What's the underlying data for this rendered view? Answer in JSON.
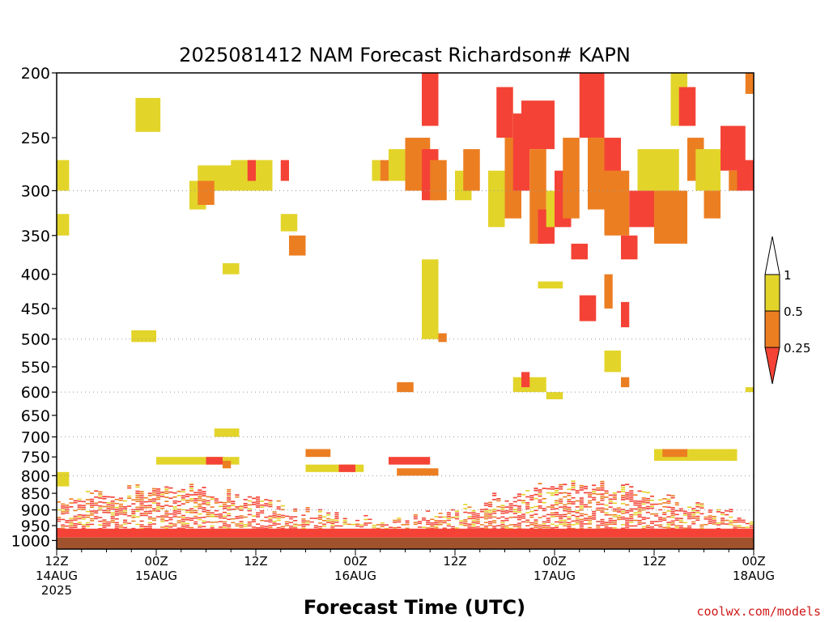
{
  "chart_data": {
    "type": "heatmap",
    "title": "2025081412 NAM Forecast Richardson# KAPN",
    "xlabel": "Forecast Time (UTC)",
    "ylabel": "",
    "x_range_hours": [
      0,
      84
    ],
    "x_ticks": [
      {
        "hour": 0,
        "line1": "12Z",
        "line2": "14AUG",
        "line3": "2025"
      },
      {
        "hour": 12,
        "line1": "00Z",
        "line2": "15AUG",
        "line3": ""
      },
      {
        "hour": 24,
        "line1": "12Z",
        "line2": "",
        "line3": ""
      },
      {
        "hour": 36,
        "line1": "00Z",
        "line2": "16AUG",
        "line3": ""
      },
      {
        "hour": 48,
        "line1": "12Z",
        "line2": "",
        "line3": ""
      },
      {
        "hour": 60,
        "line1": "00Z",
        "line2": "17AUG",
        "line3": ""
      },
      {
        "hour": 72,
        "line1": "12Z",
        "line2": "",
        "line3": ""
      },
      {
        "hour": 84,
        "line1": "00Z",
        "line2": "18AUG",
        "line3": ""
      }
    ],
    "y_ticks": [
      200,
      250,
      300,
      350,
      400,
      450,
      500,
      550,
      600,
      650,
      700,
      750,
      800,
      850,
      900,
      950,
      1000
    ],
    "y_range_hPa": [
      200,
      1030
    ],
    "y_scale": "log",
    "gridlines_at": [
      300,
      500,
      600,
      700,
      800,
      900,
      1000
    ],
    "legend": {
      "position": "right",
      "labels": [
        "1",
        "0.5",
        "0.25"
      ],
      "bins": [
        {
          "range": "0.5-1",
          "color": "#e3d42a"
        },
        {
          "range": "0.25-0.5",
          "color": "#ec7e22"
        },
        {
          "range": "<0.25",
          "color": "#f44336"
        }
      ],
      "over_color": "#ffffff"
    },
    "colors": {
      "lt_0_25": "#f44336",
      "0_25_to_0_5": "#ec7e22",
      "0_5_to_1": "#e3d42a",
      "ground": "#a0522d"
    },
    "approx_cells": [
      {
        "h0": 0,
        "h1": 1.5,
        "p0": 270,
        "p1": 300,
        "bin": "0.5-1"
      },
      {
        "h0": 0,
        "h1": 1.5,
        "p0": 325,
        "p1": 350,
        "bin": "0.5-1"
      },
      {
        "h0": 0,
        "h1": 1.5,
        "p0": 790,
        "p1": 830,
        "bin": "0.5-1"
      },
      {
        "h0": 9.5,
        "h1": 12.5,
        "p0": 218,
        "p1": 245,
        "bin": "0.5-1"
      },
      {
        "h0": 17,
        "h1": 22,
        "p0": 275,
        "p1": 300,
        "bin": "0.5-1"
      },
      {
        "h0": 16,
        "h1": 18,
        "p0": 290,
        "p1": 320,
        "bin": "0.5-1"
      },
      {
        "h0": 17,
        "h1": 19,
        "p0": 290,
        "p1": 315,
        "bin": "0.25-0.5"
      },
      {
        "h0": 21,
        "h1": 26,
        "p0": 270,
        "p1": 300,
        "bin": "0.5-1"
      },
      {
        "h0": 23,
        "h1": 24,
        "p0": 270,
        "p1": 290,
        "bin": "<0.25"
      },
      {
        "h0": 27,
        "h1": 28,
        "p0": 270,
        "p1": 290,
        "bin": "<0.25"
      },
      {
        "h0": 20,
        "h1": 22,
        "p0": 385,
        "p1": 400,
        "bin": "0.5-1"
      },
      {
        "h0": 9,
        "h1": 12,
        "p0": 485,
        "p1": 505,
        "bin": "0.5-1"
      },
      {
        "h0": 27,
        "h1": 29,
        "p0": 325,
        "p1": 345,
        "bin": "0.5-1"
      },
      {
        "h0": 28,
        "h1": 30,
        "p0": 350,
        "p1": 375,
        "bin": "0.25-0.5"
      },
      {
        "h0": 38,
        "h1": 39,
        "p0": 270,
        "p1": 290,
        "bin": "0.5-1"
      },
      {
        "h0": 39,
        "h1": 40,
        "p0": 270,
        "p1": 290,
        "bin": "0.25-0.5"
      },
      {
        "h0": 40,
        "h1": 42,
        "p0": 260,
        "p1": 290,
        "bin": "0.5-1"
      },
      {
        "h0": 42,
        "h1": 45,
        "p0": 250,
        "p1": 300,
        "bin": "0.25-0.5"
      },
      {
        "h0": 44,
        "h1": 46,
        "p0": 200,
        "p1": 240,
        "bin": "<0.25"
      },
      {
        "h0": 44,
        "h1": 46,
        "p0": 260,
        "p1": 310,
        "bin": "<0.25"
      },
      {
        "h0": 45,
        "h1": 47,
        "p0": 270,
        "p1": 310,
        "bin": "0.25-0.5"
      },
      {
        "h0": 48,
        "h1": 50,
        "p0": 280,
        "p1": 310,
        "bin": "0.5-1"
      },
      {
        "h0": 49,
        "h1": 51,
        "p0": 260,
        "p1": 300,
        "bin": "0.25-0.5"
      },
      {
        "h0": 52,
        "h1": 54,
        "p0": 280,
        "p1": 340,
        "bin": "0.5-1"
      },
      {
        "h0": 53,
        "h1": 55,
        "p0": 210,
        "p1": 250,
        "bin": "<0.25"
      },
      {
        "h0": 54,
        "h1": 56,
        "p0": 250,
        "p1": 330,
        "bin": "0.25-0.5"
      },
      {
        "h0": 55,
        "h1": 57,
        "p0": 230,
        "p1": 300,
        "bin": "<0.25"
      },
      {
        "h0": 56,
        "h1": 60,
        "p0": 220,
        "p1": 260,
        "bin": "<0.25"
      },
      {
        "h0": 57,
        "h1": 59,
        "p0": 260,
        "p1": 360,
        "bin": "0.25-0.5"
      },
      {
        "h0": 58,
        "h1": 60,
        "p0": 320,
        "p1": 360,
        "bin": "<0.25"
      },
      {
        "h0": 59,
        "h1": 61,
        "p0": 300,
        "p1": 340,
        "bin": "0.5-1"
      },
      {
        "h0": 60,
        "h1": 62,
        "p0": 280,
        "p1": 340,
        "bin": "<0.25"
      },
      {
        "h0": 61,
        "h1": 63,
        "p0": 250,
        "p1": 330,
        "bin": "0.25-0.5"
      },
      {
        "h0": 62,
        "h1": 64,
        "p0": 360,
        "p1": 380,
        "bin": "<0.25"
      },
      {
        "h0": 63,
        "h1": 66,
        "p0": 200,
        "p1": 250,
        "bin": "<0.25"
      },
      {
        "h0": 64,
        "h1": 66,
        "p0": 250,
        "p1": 320,
        "bin": "0.25-0.5"
      },
      {
        "h0": 66,
        "h1": 68,
        "p0": 250,
        "p1": 330,
        "bin": "<0.25"
      },
      {
        "h0": 66,
        "h1": 69,
        "p0": 280,
        "p1": 350,
        "bin": "0.25-0.5"
      },
      {
        "h0": 68,
        "h1": 70,
        "p0": 350,
        "p1": 380,
        "bin": "<0.25"
      },
      {
        "h0": 69,
        "h1": 72,
        "p0": 300,
        "p1": 340,
        "bin": "<0.25"
      },
      {
        "h0": 70,
        "h1": 75,
        "p0": 260,
        "p1": 300,
        "bin": "0.5-1"
      },
      {
        "h0": 72,
        "h1": 76,
        "p0": 300,
        "p1": 360,
        "bin": "0.25-0.5"
      },
      {
        "h0": 74,
        "h1": 76,
        "p0": 200,
        "p1": 240,
        "bin": "0.5-1"
      },
      {
        "h0": 75,
        "h1": 77,
        "p0": 210,
        "p1": 240,
        "bin": "<0.25"
      },
      {
        "h0": 76,
        "h1": 78,
        "p0": 250,
        "p1": 290,
        "bin": "0.25-0.5"
      },
      {
        "h0": 77,
        "h1": 80,
        "p0": 260,
        "p1": 300,
        "bin": "0.5-1"
      },
      {
        "h0": 78,
        "h1": 80,
        "p0": 300,
        "p1": 330,
        "bin": "0.25-0.5"
      },
      {
        "h0": 80,
        "h1": 83,
        "p0": 240,
        "p1": 280,
        "bin": "<0.25"
      },
      {
        "h0": 81,
        "h1": 83,
        "p0": 280,
        "p1": 300,
        "bin": "0.25-0.5"
      },
      {
        "h0": 82,
        "h1": 84,
        "p0": 270,
        "p1": 300,
        "bin": "<0.25"
      },
      {
        "h0": 83,
        "h1": 84,
        "p0": 200,
        "p1": 215,
        "bin": "0.25-0.5"
      },
      {
        "h0": 83,
        "h1": 84,
        "p0": 590,
        "p1": 600,
        "bin": "0.5-1"
      },
      {
        "h0": 41,
        "h1": 43,
        "p0": 580,
        "p1": 600,
        "bin": "0.25-0.5"
      },
      {
        "h0": 44,
        "h1": 46,
        "p0": 380,
        "p1": 500,
        "bin": "0.5-1"
      },
      {
        "h0": 46,
        "h1": 47,
        "p0": 490,
        "p1": 505,
        "bin": "0.25-0.5"
      },
      {
        "h0": 55,
        "h1": 59,
        "p0": 570,
        "p1": 600,
        "bin": "0.5-1"
      },
      {
        "h0": 56,
        "h1": 57,
        "p0": 560,
        "p1": 590,
        "bin": "<0.25"
      },
      {
        "h0": 58,
        "h1": 61,
        "p0": 410,
        "p1": 420,
        "bin": "0.5-1"
      },
      {
        "h0": 59,
        "h1": 61,
        "p0": 600,
        "p1": 615,
        "bin": "0.5-1"
      },
      {
        "h0": 63,
        "h1": 65,
        "p0": 430,
        "p1": 470,
        "bin": "<0.25"
      },
      {
        "h0": 66,
        "h1": 67,
        "p0": 400,
        "p1": 450,
        "bin": "0.25-0.5"
      },
      {
        "h0": 68,
        "h1": 69,
        "p0": 440,
        "p1": 480,
        "bin": "<0.25"
      },
      {
        "h0": 66,
        "h1": 68,
        "p0": 520,
        "p1": 560,
        "bin": "0.5-1"
      },
      {
        "h0": 68,
        "h1": 69,
        "p0": 570,
        "p1": 590,
        "bin": "0.25-0.5"
      },
      {
        "h0": 19,
        "h1": 22,
        "p0": 680,
        "p1": 700,
        "bin": "0.5-1"
      },
      {
        "h0": 12,
        "h1": 22,
        "p0": 750,
        "p1": 770,
        "bin": "0.5-1"
      },
      {
        "h0": 18,
        "h1": 20,
        "p0": 750,
        "p1": 770,
        "bin": "<0.25"
      },
      {
        "h0": 20,
        "h1": 21,
        "p0": 760,
        "p1": 780,
        "bin": "0.25-0.5"
      },
      {
        "h0": 30,
        "h1": 33,
        "p0": 730,
        "p1": 750,
        "bin": "0.25-0.5"
      },
      {
        "h0": 30,
        "h1": 37,
        "p0": 770,
        "p1": 790,
        "bin": "0.5-1"
      },
      {
        "h0": 34,
        "h1": 36,
        "p0": 770,
        "p1": 790,
        "bin": "<0.25"
      },
      {
        "h0": 40,
        "h1": 45,
        "p0": 750,
        "p1": 770,
        "bin": "<0.25"
      },
      {
        "h0": 41,
        "h1": 46,
        "p0": 780,
        "p1": 800,
        "bin": "0.25-0.5"
      },
      {
        "h0": 72,
        "h1": 82,
        "p0": 730,
        "p1": 760,
        "bin": "0.5-1"
      },
      {
        "h0": 73,
        "h1": 76,
        "p0": 730,
        "p1": 750,
        "bin": "0.25-0.5"
      }
    ],
    "note_lower": "dense stripes of <0.25 and 0.25-0.5 between ~850 and ~990 hPa across entire period; ground below ~990 hPa"
  },
  "credit": "coolwx.com/models"
}
